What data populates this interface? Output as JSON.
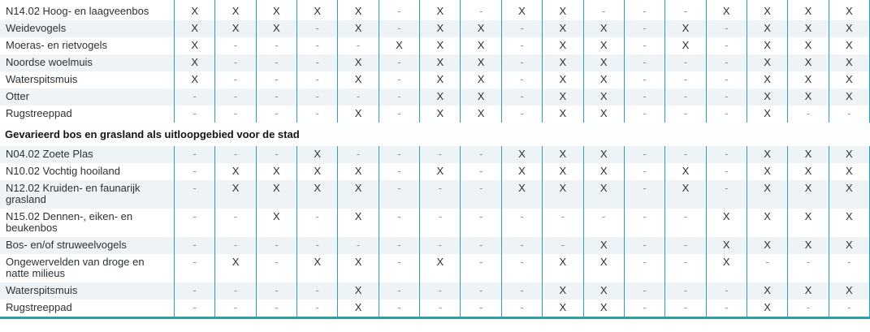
{
  "table": {
    "marks": {
      "present": "X",
      "absent": "-"
    },
    "column_count": 17,
    "sections": [
      {
        "header": "",
        "rows": [
          {
            "label": "N14.02 Hoog- en laagveenbos",
            "values": [
              "X",
              "X",
              "X",
              "X",
              "X",
              "-",
              "X",
              "-",
              "X",
              "X",
              "-",
              "-",
              "-",
              "X",
              "X",
              "X",
              "X"
            ]
          },
          {
            "label": "Weidevogels",
            "values": [
              "X",
              "X",
              "X",
              "-",
              "X",
              "-",
              "X",
              "X",
              "-",
              "X",
              "X",
              "-",
              "X",
              "-",
              "X",
              "X",
              "X"
            ]
          },
          {
            "label": "Moeras- en rietvogels",
            "values": [
              "X",
              "-",
              "-",
              "-",
              "-",
              "X",
              "X",
              "X",
              "-",
              "X",
              "X",
              "-",
              "X",
              "-",
              "X",
              "X",
              "X"
            ]
          },
          {
            "label": "Noordse woelmuis",
            "values": [
              "X",
              "-",
              "-",
              "-",
              "X",
              "-",
              "X",
              "X",
              "-",
              "X",
              "X",
              "-",
              "-",
              "-",
              "X",
              "X",
              "X"
            ]
          },
          {
            "label": "Waterspitsmuis",
            "values": [
              "X",
              "-",
              "-",
              "-",
              "X",
              "-",
              "X",
              "X",
              "-",
              "X",
              "X",
              "-",
              "-",
              "-",
              "X",
              "X",
              "X"
            ]
          },
          {
            "label": "Otter",
            "values": [
              "-",
              "-",
              "-",
              "-",
              "-",
              "-",
              "X",
              "X",
              "-",
              "X",
              "X",
              "-",
              "-",
              "-",
              "X",
              "X",
              "X"
            ]
          },
          {
            "label": "Rugstreeppad",
            "values": [
              "-",
              "-",
              "-",
              "-",
              "X",
              "-",
              "X",
              "X",
              "-",
              "X",
              "X",
              "-",
              "-",
              "-",
              "X",
              "-",
              "-"
            ]
          }
        ]
      },
      {
        "header": "Gevarieerd bos en grasland als uitloopgebied voor de stad",
        "rows": [
          {
            "label": "N04.02 Zoete Plas",
            "values": [
              "-",
              "-",
              "-",
              "X",
              "-",
              "-",
              "-",
              "-",
              "X",
              "X",
              "X",
              "-",
              "-",
              "-",
              "X",
              "X",
              "X"
            ]
          },
          {
            "label": "N10.02 Vochtig hooiland",
            "values": [
              "-",
              "X",
              "X",
              "X",
              "X",
              "-",
              "X",
              "-",
              "X",
              "X",
              "X",
              "-",
              "X",
              "-",
              "X",
              "X",
              "X"
            ]
          },
          {
            "label": "N12.02 Kruiden- en faunarijk grasland",
            "values": [
              "-",
              "X",
              "X",
              "X",
              "X",
              "-",
              "-",
              "-",
              "X",
              "X",
              "X",
              "-",
              "X",
              "-",
              "X",
              "X",
              "X"
            ]
          },
          {
            "label": "N15.02 Dennen-, eiken- en beukenbos",
            "values": [
              "-",
              "-",
              "X",
              "-",
              "X",
              "-",
              "-",
              "-",
              "-",
              "-",
              "-",
              "-",
              "-",
              "X",
              "X",
              "X",
              "X"
            ]
          },
          {
            "label": "Bos- en/of struweelvogels",
            "values": [
              "-",
              "-",
              "-",
              "-",
              "-",
              "-",
              "-",
              "-",
              "-",
              "-",
              "X",
              "-",
              "-",
              "X",
              "X",
              "X",
              "X"
            ]
          },
          {
            "label": "Ongewervelden van droge en natte milieus",
            "values": [
              "-",
              "X",
              "-",
              "X",
              "X",
              "-",
              "X",
              "-",
              "-",
              "X",
              "X",
              "-",
              "-",
              "X",
              "-",
              "-",
              "-"
            ]
          },
          {
            "label": "Waterspitsmuis",
            "values": [
              "-",
              "-",
              "-",
              "-",
              "X",
              "-",
              "-",
              "-",
              "-",
              "X",
              "X",
              "-",
              "-",
              "-",
              "X",
              "X",
              "X"
            ]
          },
          {
            "label": "Rugstreeppad",
            "values": [
              "-",
              "-",
              "-",
              "-",
              "X",
              "-",
              "-",
              "-",
              "-",
              "X",
              "X",
              "-",
              "-",
              "-",
              "X",
              "-",
              "-"
            ]
          }
        ]
      }
    ]
  },
  "colors": {
    "grid_line": "#2f9fae",
    "bottom_border": "#2f9fae",
    "stripe": "#edf3f7",
    "text": "#2b3135",
    "dash": "#8d9499"
  }
}
